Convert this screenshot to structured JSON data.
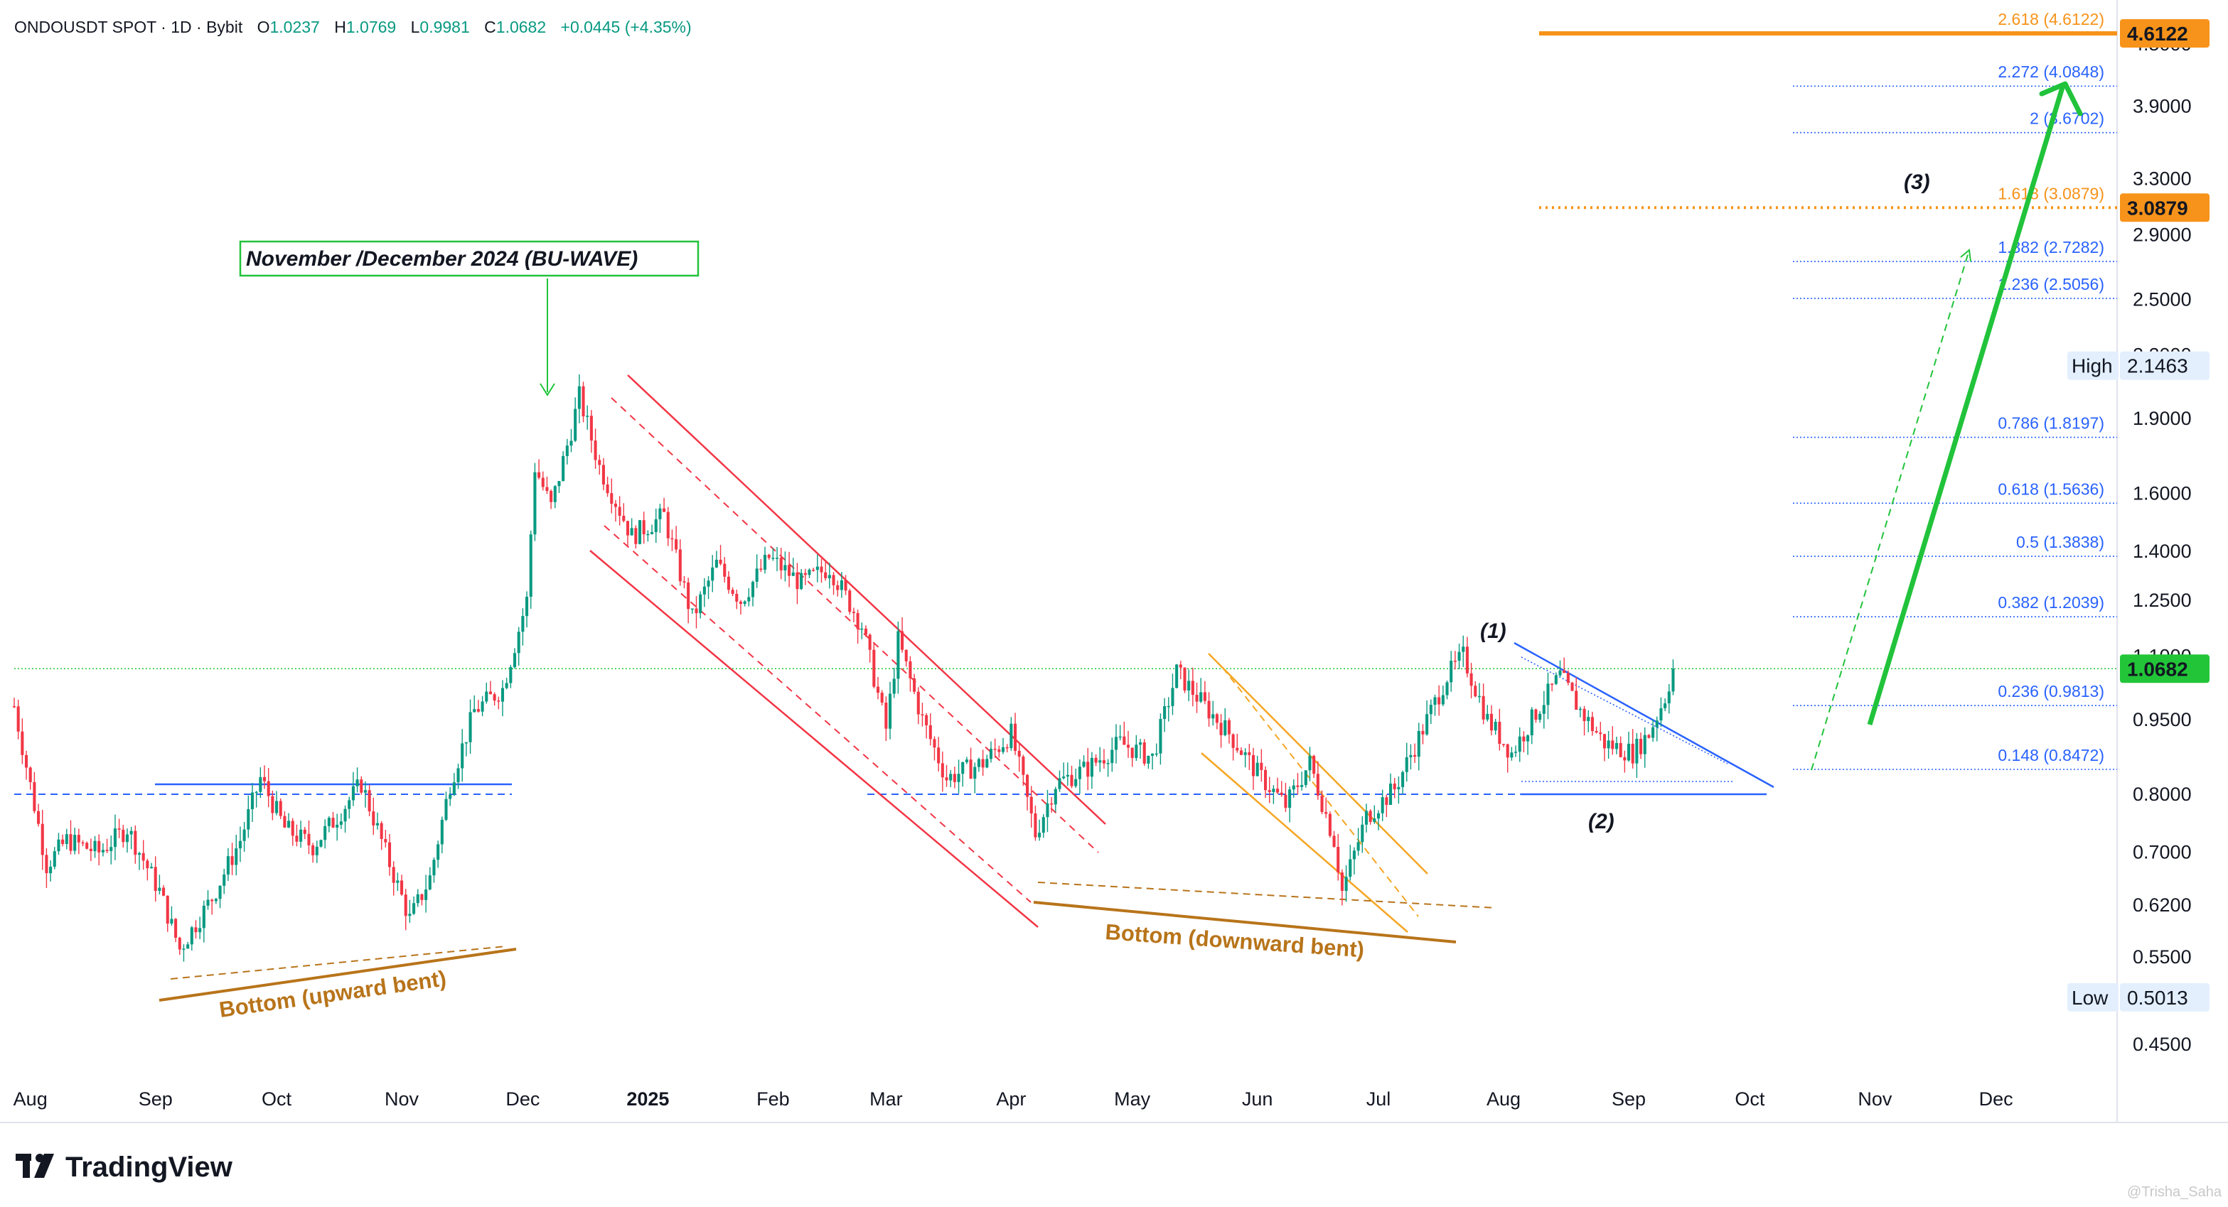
{
  "header": {
    "symbol": "ONDOUSDT SPOT · 1D · Bybit",
    "o_label": "O",
    "o_value": "1.0237",
    "h_label": "H",
    "h_value": "1.0769",
    "l_label": "L",
    "l_value": "0.9981",
    "c_label": "C",
    "c_value": "1.0682",
    "change": "+0.0445 (+4.35%)"
  },
  "branding": {
    "logo_text": "TradingView",
    "watermark": "@Trisha_Saha"
  },
  "colors": {
    "up": "#089981",
    "down": "#f23645",
    "fib_line": "#2962ff",
    "fib_text": "#2962ff",
    "fib_orange": "#f7931a",
    "green_arrow": "#21c33b",
    "bottom_brown": "#b8741a",
    "channel_red": "#f23645",
    "channel_orange": "#f5a623",
    "price_tag_green": "#22c538",
    "price_tag_orange": "#f7931a"
  },
  "chart_data": {
    "type": "candlestick",
    "title": "ONDOUSDT SPOT · 1D · Bybit",
    "y_scale": "log",
    "y_tick_labels": [
      "4.5000",
      "3.9000",
      "3.3000",
      "2.9000",
      "2.5000",
      "2.2000",
      "1.9000",
      "1.6000",
      "1.4000",
      "1.2500",
      "1.1000",
      "0.9500",
      "0.8000",
      "0.7000",
      "0.6200",
      "0.5500",
      "0.4500"
    ],
    "y_ticks": [
      4.5,
      3.9,
      3.3,
      2.9,
      2.5,
      2.2,
      1.9,
      1.6,
      1.4,
      1.25,
      1.1,
      0.95,
      0.8,
      0.7,
      0.62,
      0.55,
      0.45
    ],
    "ylim": [
      0.42,
      4.9
    ],
    "x_tick_labels": [
      "Aug",
      "Sep",
      "Oct",
      "Nov",
      "Dec",
      "2025",
      "Feb",
      "Mar",
      "Apr",
      "May",
      "Jun",
      "Jul",
      "Aug",
      "Sep",
      "Oct",
      "Nov",
      "Dec"
    ],
    "x_ticks": [
      "2024-08-01",
      "2024-09-01",
      "2024-10-01",
      "2024-11-01",
      "2024-12-01",
      "2025-01-01",
      "2025-02-01",
      "2025-03-01",
      "2025-04-01",
      "2025-05-01",
      "2025-06-01",
      "2025-07-01",
      "2025-08-01",
      "2025-09-01",
      "2025-10-01",
      "2025-11-01",
      "2025-12-01"
    ],
    "xlim": [
      "2024-07-28",
      "2025-12-31"
    ],
    "price_path": [
      [
        "2024-07-28",
        0.98
      ],
      [
        "2024-08-05",
        0.68
      ],
      [
        "2024-08-10",
        0.72
      ],
      [
        "2024-08-18",
        0.7
      ],
      [
        "2024-08-25",
        0.74
      ],
      [
        "2024-09-02",
        0.64
      ],
      [
        "2024-09-07",
        0.56
      ],
      [
        "2024-09-15",
        0.63
      ],
      [
        "2024-09-22",
        0.72
      ],
      [
        "2024-09-27",
        0.83
      ],
      [
        "2024-10-03",
        0.74
      ],
      [
        "2024-10-10",
        0.71
      ],
      [
        "2024-10-16",
        0.76
      ],
      [
        "2024-10-22",
        0.82
      ],
      [
        "2024-10-28",
        0.7
      ],
      [
        "2024-11-03",
        0.6
      ],
      [
        "2024-11-08",
        0.66
      ],
      [
        "2024-11-13",
        0.82
      ],
      [
        "2024-11-19",
        0.97
      ],
      [
        "2024-11-26",
        1.02
      ],
      [
        "2024-12-02",
        1.25
      ],
      [
        "2024-12-04",
        1.7
      ],
      [
        "2024-12-08",
        1.55
      ],
      [
        "2024-12-13",
        1.85
      ],
      [
        "2024-12-15",
        2.0
      ],
      [
        "2024-12-20",
        1.7
      ],
      [
        "2024-12-28",
        1.45
      ],
      [
        "2025-01-05",
        1.52
      ],
      [
        "2025-01-12",
        1.2
      ],
      [
        "2025-01-18",
        1.36
      ],
      [
        "2025-01-24",
        1.25
      ],
      [
        "2025-01-31",
        1.38
      ],
      [
        "2025-02-08",
        1.3
      ],
      [
        "2025-02-15",
        1.35
      ],
      [
        "2025-02-23",
        1.18
      ],
      [
        "2025-03-01",
        0.93
      ],
      [
        "2025-03-04",
        1.14
      ],
      [
        "2025-03-10",
        0.95
      ],
      [
        "2025-03-16",
        0.83
      ],
      [
        "2025-03-25",
        0.86
      ],
      [
        "2025-04-01",
        0.92
      ],
      [
        "2025-04-07",
        0.73
      ],
      [
        "2025-04-12",
        0.82
      ],
      [
        "2025-04-20",
        0.85
      ],
      [
        "2025-04-28",
        0.9
      ],
      [
        "2025-05-06",
        0.87
      ],
      [
        "2025-05-12",
        1.06
      ],
      [
        "2025-05-19",
        0.98
      ],
      [
        "2025-05-25",
        0.92
      ],
      [
        "2025-06-01",
        0.84
      ],
      [
        "2025-06-08",
        0.78
      ],
      [
        "2025-06-14",
        0.86
      ],
      [
        "2025-06-20",
        0.72
      ],
      [
        "2025-06-22",
        0.64
      ],
      [
        "2025-06-28",
        0.76
      ],
      [
        "2025-07-05",
        0.81
      ],
      [
        "2025-07-12",
        0.93
      ],
      [
        "2025-07-18",
        1.05
      ],
      [
        "2025-07-22",
        1.1
      ],
      [
        "2025-07-28",
        0.95
      ],
      [
        "2025-08-03",
        0.88
      ],
      [
        "2025-08-10",
        0.98
      ],
      [
        "2025-08-15",
        1.05
      ],
      [
        "2025-08-20",
        0.97
      ],
      [
        "2025-08-26",
        0.9
      ],
      [
        "2025-09-02",
        0.88
      ],
      [
        "2025-09-06",
        0.92
      ],
      [
        "2025-09-10",
        1.0
      ],
      [
        "2025-09-12",
        1.0682
      ]
    ],
    "price_tags": [
      {
        "label": "4.6122",
        "value": 4.6122,
        "style": "orange"
      },
      {
        "label": "3.0879",
        "value": 3.0879,
        "style": "orange"
      },
      {
        "label": "2.1463",
        "value": 2.1463,
        "style": "grey",
        "caption": "High"
      },
      {
        "label": "1.0682",
        "value": 1.0682,
        "style": "green"
      },
      {
        "label": "0.5013",
        "value": 0.5013,
        "style": "grey",
        "caption": "Low"
      }
    ],
    "fib_levels": [
      {
        "label": "2.618 (4.6122)",
        "value": 4.6122,
        "color": "orange"
      },
      {
        "label": "2.272 (4.0848)",
        "value": 4.0848,
        "color": "blue"
      },
      {
        "label": "2 (3.6702)",
        "value": 3.6702,
        "color": "blue"
      },
      {
        "label": "1.618 (3.0879)",
        "value": 3.0879,
        "color": "orange"
      },
      {
        "label": "1.382 (2.7282)",
        "value": 2.7282,
        "color": "blue"
      },
      {
        "label": "1.236 (2.5056)",
        "value": 2.5056,
        "color": "blue"
      },
      {
        "label": "0.786 (1.8197)",
        "value": 1.8197,
        "color": "blue"
      },
      {
        "label": "0.618 (1.5636)",
        "value": 1.5636,
        "color": "blue"
      },
      {
        "label": "0.5 (1.3838)",
        "value": 1.3838,
        "color": "blue"
      },
      {
        "label": "0.382 (1.2039)",
        "value": 1.2039,
        "color": "blue"
      },
      {
        "label": "0.236 (0.9813)",
        "value": 0.9813,
        "color": "blue"
      },
      {
        "label": "0.148 (0.8472)",
        "value": 0.8472,
        "color": "blue"
      }
    ],
    "annotations": {
      "wave_box": "November /December 2024  (BU-WAVE)",
      "bottom_upward": "Bottom (upward bent)",
      "bottom_downward": "Bottom (downward bent)",
      "wave1": "(1)",
      "wave2": "(2)",
      "wave3": "(3)"
    }
  }
}
